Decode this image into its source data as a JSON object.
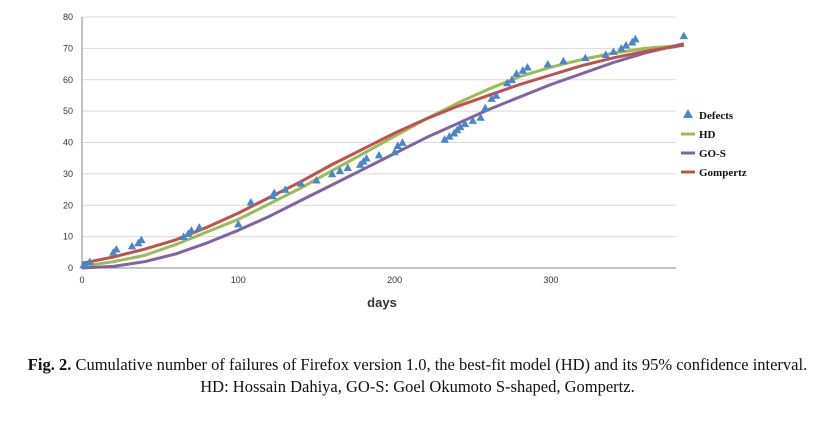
{
  "chart_data": {
    "type": "line",
    "title": "",
    "xlabel": "days",
    "ylabel": "",
    "xlim": [
      0,
      380
    ],
    "ylim": [
      0,
      80
    ],
    "x_ticks": [
      0,
      100,
      200,
      300
    ],
    "y_ticks": [
      0,
      10,
      20,
      30,
      40,
      50,
      60,
      70,
      80
    ],
    "grid": true,
    "legend_position": "right",
    "series": [
      {
        "name": "Defects",
        "kind": "scatter",
        "marker": "triangle",
        "color": "#4a86c8",
        "points": [
          [
            1,
            1
          ],
          [
            2,
            1
          ],
          [
            5,
            2
          ],
          [
            20,
            5
          ],
          [
            22,
            6
          ],
          [
            32,
            7
          ],
          [
            36,
            8
          ],
          [
            38,
            9
          ],
          [
            65,
            10
          ],
          [
            68,
            11
          ],
          [
            70,
            12
          ],
          [
            75,
            13
          ],
          [
            100,
            14
          ],
          [
            108,
            21
          ],
          [
            122,
            23
          ],
          [
            123,
            24
          ],
          [
            130,
            25
          ],
          [
            140,
            27
          ],
          [
            150,
            28
          ],
          [
            160,
            30
          ],
          [
            165,
            31
          ],
          [
            170,
            32
          ],
          [
            178,
            33
          ],
          [
            180,
            34
          ],
          [
            182,
            35
          ],
          [
            190,
            36
          ],
          [
            200,
            37
          ],
          [
            202,
            39
          ],
          [
            205,
            40
          ],
          [
            232,
            41
          ],
          [
            235,
            42
          ],
          [
            238,
            43
          ],
          [
            240,
            44
          ],
          [
            242,
            45
          ],
          [
            245,
            46
          ],
          [
            250,
            47
          ],
          [
            255,
            48
          ],
          [
            258,
            51
          ],
          [
            262,
            54
          ],
          [
            265,
            55
          ],
          [
            272,
            59
          ],
          [
            275,
            60
          ],
          [
            278,
            62
          ],
          [
            282,
            63
          ],
          [
            285,
            64
          ],
          [
            298,
            65
          ],
          [
            308,
            66
          ],
          [
            322,
            67
          ],
          [
            335,
            68
          ],
          [
            340,
            69
          ],
          [
            345,
            70
          ],
          [
            348,
            71
          ],
          [
            352,
            72
          ],
          [
            354,
            73
          ],
          [
            385,
            74
          ]
        ]
      },
      {
        "name": "HD",
        "kind": "line",
        "color": "#9bbb59",
        "points": [
          [
            0,
            0.5
          ],
          [
            20,
            2
          ],
          [
            40,
            4
          ],
          [
            60,
            7.5
          ],
          [
            80,
            11.5
          ],
          [
            100,
            15.5
          ],
          [
            120,
            20.5
          ],
          [
            140,
            25.5
          ],
          [
            160,
            31
          ],
          [
            180,
            36.5
          ],
          [
            200,
            42
          ],
          [
            220,
            47.5
          ],
          [
            240,
            52.5
          ],
          [
            260,
            57
          ],
          [
            280,
            61
          ],
          [
            300,
            64
          ],
          [
            320,
            66.5
          ],
          [
            340,
            68.5
          ],
          [
            360,
            70
          ],
          [
            385,
            71
          ]
        ]
      },
      {
        "name": "GO-S",
        "kind": "line",
        "color": "#8064a2",
        "points": [
          [
            0,
            0
          ],
          [
            20,
            0.5
          ],
          [
            40,
            2
          ],
          [
            60,
            4.5
          ],
          [
            80,
            8
          ],
          [
            100,
            12
          ],
          [
            120,
            16.5
          ],
          [
            140,
            21.5
          ],
          [
            160,
            26.5
          ],
          [
            180,
            31.5
          ],
          [
            200,
            36.5
          ],
          [
            220,
            41.5
          ],
          [
            240,
            46
          ],
          [
            260,
            50.5
          ],
          [
            280,
            54.5
          ],
          [
            300,
            58.5
          ],
          [
            320,
            62
          ],
          [
            340,
            65.5
          ],
          [
            360,
            68.5
          ],
          [
            385,
            71.5
          ]
        ]
      },
      {
        "name": "Gompertz",
        "kind": "line",
        "color": "#c0504d",
        "points": [
          [
            0,
            1.5
          ],
          [
            20,
            3.5
          ],
          [
            40,
            6
          ],
          [
            60,
            9
          ],
          [
            80,
            13
          ],
          [
            100,
            17.5
          ],
          [
            120,
            22.5
          ],
          [
            140,
            27.5
          ],
          [
            160,
            33
          ],
          [
            180,
            38
          ],
          [
            200,
            43
          ],
          [
            220,
            47.5
          ],
          [
            240,
            51.5
          ],
          [
            260,
            55
          ],
          [
            280,
            58.5
          ],
          [
            300,
            61.5
          ],
          [
            320,
            64.5
          ],
          [
            340,
            67
          ],
          [
            360,
            69
          ],
          [
            385,
            71
          ]
        ]
      }
    ]
  },
  "caption": {
    "label": "Fig. 2.",
    "text": " Cumulative number of failures of Firefox version 1.0, the best-fit model (HD) and its 95% confidence interval. HD: Hossain Dahiya, GO-S: Goel Okumoto S-shaped, Gompertz."
  }
}
